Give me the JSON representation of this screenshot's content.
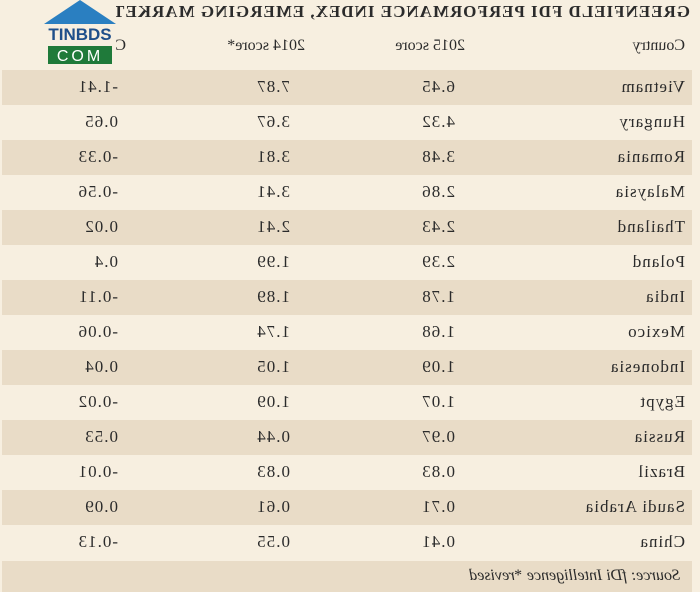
{
  "header": {
    "title": "GREENFIELD FDI PERFORMANCE INDEX, EMERGING MARKETS"
  },
  "table": {
    "columns": [
      "Country",
      "2015 score",
      "2014 score*",
      "Change"
    ],
    "rows": [
      [
        "Vietnam",
        "6.45",
        "7.87",
        "-1.41"
      ],
      [
        "Hungary",
        "4.32",
        "3.67",
        "0.65"
      ],
      [
        "Romania",
        "3.48",
        "3.81",
        "-0.33"
      ],
      [
        "Malaysia",
        "2.86",
        "3.41",
        "-0.56"
      ],
      [
        "Thailand",
        "2.43",
        "2.41",
        "0.02"
      ],
      [
        "Poland",
        "2.39",
        "1.99",
        "0.4"
      ],
      [
        "India",
        "1.78",
        "1.89",
        "-0.11"
      ],
      [
        "Mexico",
        "1.68",
        "1.74",
        "-0.06"
      ],
      [
        "Indonesia",
        "1.09",
        "1.05",
        "0.04"
      ],
      [
        "Egypt",
        "1.07",
        "1.09",
        "-0.02"
      ],
      [
        "Russia",
        "0.97",
        "0.44",
        "0.53"
      ],
      [
        "Brazil",
        "0.83",
        "0.83",
        "-0.01"
      ],
      [
        "Saudi Arabia",
        "0.71",
        "0.61",
        "0.09"
      ],
      [
        "China",
        "0.41",
        "0.55",
        "-0.13"
      ]
    ]
  },
  "footer": {
    "source": "Source: fDi Intelligence *revised"
  },
  "watermark": {
    "line1": "TINBDS",
    "line2": "COM"
  }
}
